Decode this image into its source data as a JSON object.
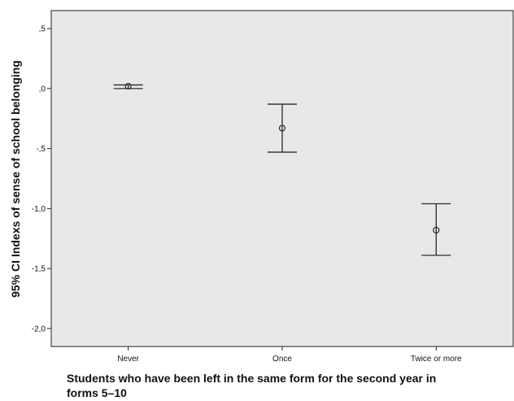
{
  "chart_data": {
    "type": "errorbar",
    "categories": [
      "Never",
      "Once",
      "Twice or more"
    ],
    "means": [
      0.02,
      -0.33,
      -1.18
    ],
    "ci_upper": [
      0.03,
      -0.13,
      -0.96
    ],
    "ci_lower": [
      0.0,
      -0.53,
      -1.39
    ],
    "ylim": [
      -2.15,
      0.65
    ],
    "yticks": [
      0.5,
      0.0,
      -0.5,
      -1.0,
      -1.5,
      -2.0
    ],
    "ytick_labels": [
      ",5",
      ",0",
      "-,5",
      "-1,0",
      "-1,5",
      "-2,0"
    ],
    "ylabel": "95% CI Indexs of sense of school belonging",
    "xlabel_lines": [
      "Students who have been left in the same form  for the second year in",
      "forms 5–10"
    ],
    "grid": false,
    "plot_background": "#e8e8e8",
    "line_color": "#2a2a2a"
  }
}
